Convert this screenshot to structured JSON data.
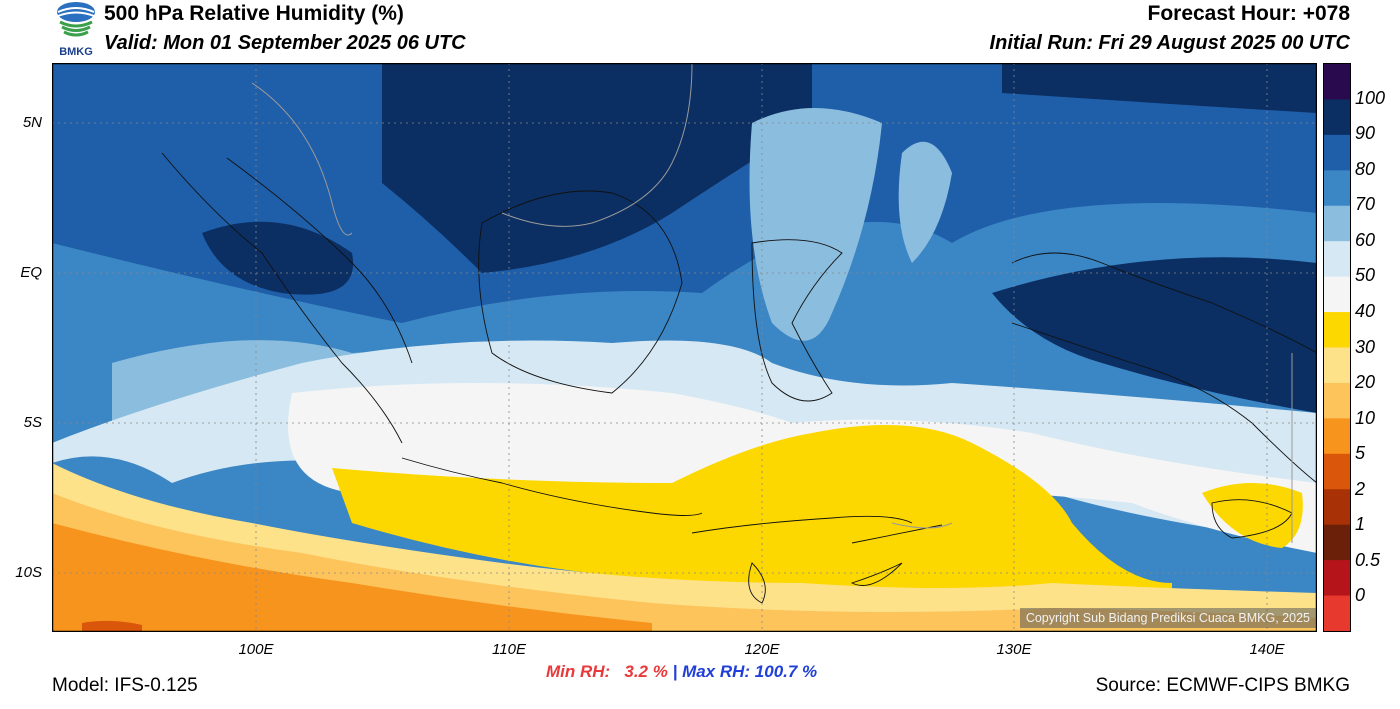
{
  "header": {
    "title": "500 hPa Relative Humidity (%)",
    "valid": "Valid: Mon 01 September 2025 06 UTC",
    "forecast_hour": "Forecast Hour: +078",
    "initial_run": "Initial Run: Fri 29 August 2025 00 UTC",
    "logo_text": "BMKG"
  },
  "map": {
    "lat_labels": [
      "5N",
      "EQ",
      "5S",
      "10S"
    ],
    "lon_labels": [
      "100E",
      "110E",
      "120E",
      "130E",
      "140E"
    ],
    "copyright": "Copyright Sub Bidang Prediksi Cuaca BMKG, 2025"
  },
  "colorbar": {
    "labels": [
      "100",
      "90",
      "80",
      "70",
      "60",
      "50",
      "40",
      "30",
      "20",
      "10",
      "5",
      "2",
      "1",
      "0.5",
      "0"
    ],
    "colors": [
      "#2a0a4e",
      "#0b2e63",
      "#1f5ea8",
      "#3b86c4",
      "#8bbddf",
      "#d6e8f3",
      "#f5f5f5",
      "#fcd800",
      "#fde28a",
      "#fdc45c",
      "#f7941d",
      "#d9560b",
      "#a83205",
      "#6b200a",
      "#b5141a",
      "#e8392f"
    ]
  },
  "stats": {
    "min_rh": "Min RH:   3.2 %",
    "separator": " | ",
    "max_rh": "Max RH: 100.7 %"
  },
  "footer": {
    "model": "Model: IFS-0.125",
    "source": "Source: ECMWF-CIPS BMKG"
  }
}
